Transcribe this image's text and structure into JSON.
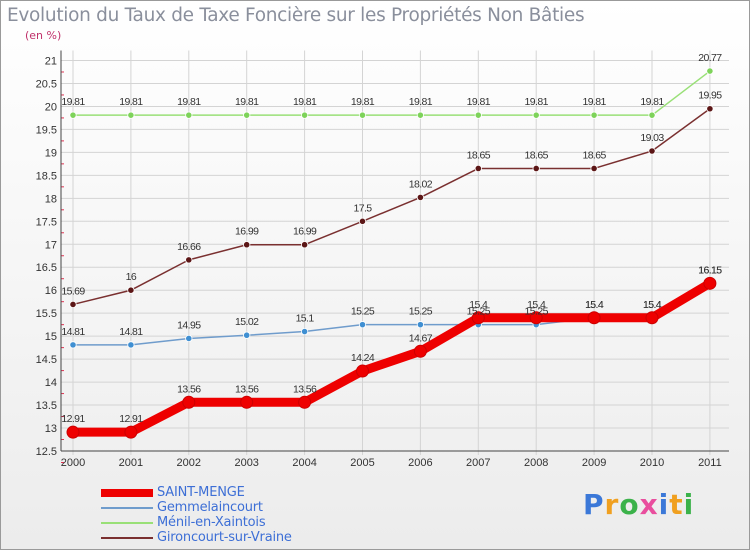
{
  "chart_data": {
    "type": "line",
    "title": "Evolution du Taux de Taxe Foncière sur les Propriétés Non Bâties",
    "unit_label": "(en %)",
    "xlabel": "",
    "ylabel": "",
    "x": [
      "2000",
      "2001",
      "2002",
      "2003",
      "2004",
      "2005",
      "2006",
      "2007",
      "2008",
      "2009",
      "2010",
      "2011"
    ],
    "ylim": [
      12.5,
      21
    ],
    "yticks": [
      "12.5",
      "13",
      "13.5",
      "14",
      "14.5",
      "15",
      "15.5",
      "16",
      "16.5",
      "17",
      "17.5",
      "18",
      "18.5",
      "19",
      "19.5",
      "20",
      "20.5",
      "21"
    ],
    "grid": true,
    "legend_position": "bottom-left",
    "series": [
      {
        "name": "SAINT-MENGE",
        "color": "#ee0000",
        "marker": "#ee0000",
        "values": [
          12.91,
          12.91,
          13.56,
          13.56,
          13.56,
          14.24,
          14.67,
          15.4,
          15.4,
          15.4,
          15.4,
          16.15
        ],
        "labels": [
          "12.91",
          "12.91",
          "13.56",
          "13.56",
          "13.56",
          "14.24",
          "14.67",
          "15.4",
          "15.4",
          "15.4",
          "15.4",
          "16.15"
        ]
      },
      {
        "name": "Gemmelaincourt",
        "color": "#6f9ccc",
        "marker": "#3f8fd2",
        "values": [
          14.81,
          14.81,
          14.95,
          15.02,
          15.1,
          15.25,
          15.25,
          15.25,
          15.25,
          15.4,
          15.4,
          16.15
        ],
        "labels": [
          "14.81",
          "14.81",
          "14.95",
          "15.02",
          "15.1",
          "15.25",
          "15.25",
          "15.25",
          "15.25",
          "15.4",
          "15.4",
          "16.15"
        ]
      },
      {
        "name": "Ménil-en-Xaintois",
        "color": "#99e077",
        "marker": "#7ed35a",
        "values": [
          19.81,
          19.81,
          19.81,
          19.81,
          19.81,
          19.81,
          19.81,
          19.81,
          19.81,
          19.81,
          19.81,
          20.77
        ],
        "labels": [
          "19.81",
          "19.81",
          "19.81",
          "19.81",
          "19.81",
          "19.81",
          "19.81",
          "19.81",
          "19.81",
          "19.81",
          "19.81",
          "20.77"
        ]
      },
      {
        "name": "Gironcourt-sur-Vraine",
        "color": "#7a3030",
        "marker": "#5c1616",
        "values": [
          15.69,
          16,
          16.66,
          16.99,
          16.99,
          17.5,
          18.02,
          18.65,
          18.65,
          18.65,
          19.03,
          19.95
        ],
        "labels": [
          "15.69",
          "16",
          "16.66",
          "16.99",
          "16.99",
          "17.5",
          "18.02",
          "18.65",
          "18.65",
          "18.65",
          "19.03",
          "19.95"
        ]
      }
    ]
  },
  "brand": {
    "letters": [
      "P",
      "r",
      "o",
      "x",
      "i",
      "t",
      "i"
    ],
    "colors": [
      "#3b78d8",
      "#f0a020",
      "#3bb24a",
      "#e94e9e",
      "#3b78d8",
      "#f0a020",
      "#3bb24a"
    ]
  }
}
